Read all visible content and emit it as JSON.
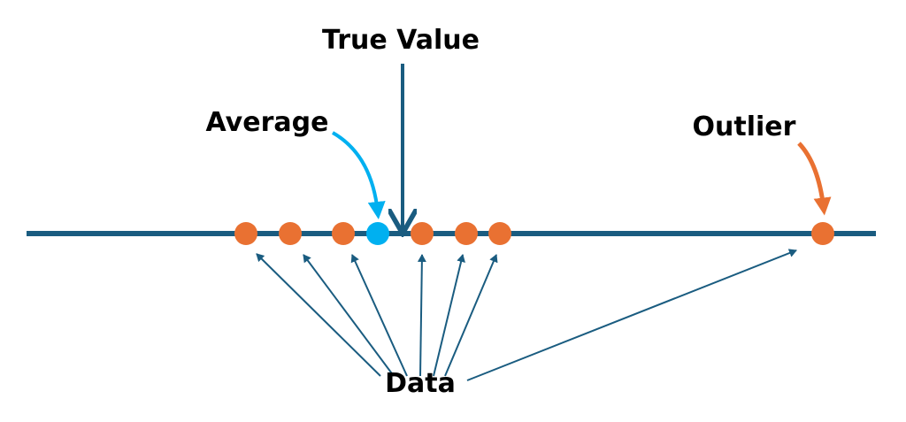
{
  "labels": {
    "true_value": "True Value",
    "average": "Average",
    "outlier": "Outlier",
    "data": "Data"
  },
  "colors": {
    "axis": "#1a5c80",
    "data_point": "#e97132",
    "average_point": "#00b0f0",
    "text": "#000000"
  },
  "points": [
    {
      "kind": "data"
    },
    {
      "kind": "data"
    },
    {
      "kind": "data"
    },
    {
      "kind": "average"
    },
    {
      "kind": "data"
    },
    {
      "kind": "data"
    },
    {
      "kind": "data"
    },
    {
      "kind": "outlier"
    }
  ]
}
